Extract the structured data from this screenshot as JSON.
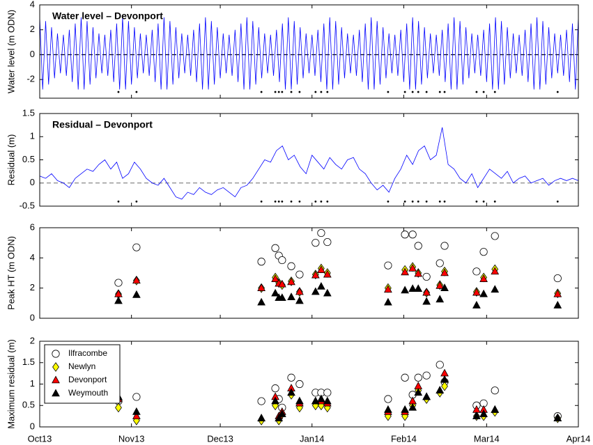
{
  "chart_data": [
    {
      "type": "line",
      "title": "Water level – Devonport",
      "y_label": "Water level (m ODN)",
      "xlim": [
        0,
        182
      ],
      "ylim": [
        -3.5,
        4
      ],
      "yticks": [
        -2,
        0,
        2,
        4
      ],
      "hline": 0,
      "hline_color": "#000000",
      "x": [
        0,
        1,
        2,
        3,
        4,
        5,
        6,
        7,
        8,
        9,
        10,
        11,
        12,
        13,
        14,
        15,
        16,
        17,
        18,
        19,
        20,
        21,
        22,
        23,
        24,
        25,
        26,
        27,
        28,
        29,
        30,
        31,
        32,
        33,
        34,
        35,
        36,
        37,
        38,
        39,
        40,
        41,
        42,
        43,
        44,
        45,
        46,
        47,
        48,
        49,
        50,
        51,
        52,
        53,
        54,
        55,
        56,
        57,
        58,
        59,
        60,
        61,
        62,
        63,
        64,
        65,
        66,
        67,
        68,
        69,
        70,
        71,
        72,
        73,
        74,
        75,
        76,
        77,
        78,
        79,
        80,
        81,
        82,
        83,
        84,
        85,
        86,
        87,
        88,
        89,
        90,
        91,
        92,
        93,
        94,
        95,
        96,
        97,
        98,
        99,
        100,
        101,
        102,
        103,
        104,
        105,
        106,
        107,
        108,
        109,
        110,
        111,
        112,
        113,
        114,
        115,
        116,
        117,
        118,
        119,
        120,
        121,
        122,
        123,
        124,
        125,
        126,
        127,
        128,
        129,
        130,
        131,
        132,
        133,
        134,
        135,
        136,
        137,
        138,
        139,
        140,
        141,
        142,
        143,
        144,
        145,
        146,
        147,
        148,
        149,
        150,
        151,
        152,
        153,
        154,
        155,
        156,
        157,
        158,
        159,
        160,
        161,
        162,
        163,
        164,
        165,
        166,
        167,
        168,
        169,
        170,
        171,
        172,
        173,
        174,
        175,
        176,
        177,
        178,
        179,
        180,
        181,
        182
      ],
      "series": [
        {
          "color": "#0000ff",
          "values": [
            3.0,
            -2.8,
            2.7,
            -2.4,
            2.2,
            -1.9,
            1.7,
            -1.5,
            1.6,
            -1.7,
            2.0,
            -2.2,
            2.5,
            -2.8,
            3.0,
            -2.8,
            2.7,
            -2.4,
            2.2,
            -1.9,
            1.7,
            -1.5,
            1.6,
            -1.7,
            2.0,
            -2.2,
            2.5,
            -2.8,
            3.0,
            -2.8,
            2.7,
            -2.4,
            2.2,
            -1.9,
            1.7,
            -1.5,
            1.6,
            -1.7,
            2.0,
            -2.2,
            2.5,
            -2.8,
            3.0,
            -2.8,
            2.7,
            -2.4,
            2.2,
            -1.9,
            1.7,
            -1.5,
            1.6,
            -1.7,
            2.0,
            -2.2,
            2.5,
            -2.8,
            3.0,
            -2.8,
            2.7,
            -2.4,
            2.2,
            -1.9,
            1.7,
            -1.5,
            1.6,
            -1.7,
            2.0,
            -2.2,
            2.5,
            -2.8,
            3.0,
            -2.8,
            2.7,
            -2.4,
            2.2,
            -1.9,
            1.7,
            -1.5,
            1.6,
            -1.7,
            2.0,
            -2.2,
            2.5,
            -2.8,
            3.0,
            -2.8,
            2.7,
            -2.4,
            2.2,
            -1.9,
            1.7,
            -1.5,
            1.6,
            -1.7,
            2.0,
            -2.2,
            2.5,
            -2.8,
            3.0,
            -2.8,
            2.7,
            -2.4,
            2.2,
            -1.9,
            1.7,
            -1.5,
            1.6,
            -1.7,
            2.0,
            -2.2,
            2.5,
            -2.8,
            3.0,
            -2.8,
            2.7,
            -2.4,
            2.2,
            -1.9,
            1.7,
            -1.5,
            1.6,
            -1.7,
            2.0,
            -2.2,
            2.5,
            -2.8,
            3.0,
            -2.8,
            2.7,
            -2.4,
            2.2,
            -1.9,
            1.7,
            -1.5,
            1.6,
            -1.7,
            2.0,
            -2.2,
            2.5,
            -2.8,
            3.0,
            -2.8,
            2.7,
            -2.4,
            2.2,
            -1.9,
            1.7,
            -1.5,
            1.6,
            -1.7,
            2.0,
            -2.2,
            2.5,
            -2.8,
            3.0,
            -2.8,
            2.7,
            -2.4,
            2.2,
            -1.9,
            1.7,
            -1.5,
            1.6,
            -1.7,
            2.0,
            -2.2,
            2.5,
            -2.8,
            3.0,
            -2.8,
            2.7,
            -2.4,
            2.2,
            -1.9,
            1.7,
            -1.5,
            1.6,
            -1.7,
            2.0,
            -2.2,
            2.5,
            -2.8,
            3.0
          ]
        }
      ],
      "events": {
        "x": [
          26.6,
          32.7,
          74.9,
          79.6,
          80.8,
          81.9,
          85,
          87.8,
          93.2,
          95.1,
          97.2,
          117.7,
          123.4,
          126,
          127.9,
          130.7,
          135.2,
          136.8,
          147.6,
          150,
          153.8,
          175
        ],
        "y": -3.0,
        "color": "#000000"
      }
    },
    {
      "type": "line",
      "title": "Residual – Devonport",
      "y_label": "Residual (m)",
      "xlim": [
        0,
        182
      ],
      "ylim": [
        -0.5,
        1.5
      ],
      "yticks": [
        -0.5,
        0,
        0.5,
        1,
        1.5
      ],
      "hline": 0,
      "hline_color": "#888888",
      "x": [
        0,
        2,
        4,
        6,
        8,
        10,
        12,
        14,
        16,
        18,
        20,
        22,
        24,
        26,
        28,
        30,
        32,
        34,
        36,
        38,
        40,
        42,
        44,
        46,
        48,
        50,
        52,
        54,
        56,
        58,
        60,
        62,
        64,
        66,
        68,
        70,
        72,
        74,
        76,
        78,
        80,
        82,
        84,
        86,
        88,
        90,
        92,
        94,
        96,
        98,
        100,
        102,
        104,
        106,
        108,
        110,
        112,
        114,
        116,
        118,
        120,
        122,
        124,
        126,
        128,
        130,
        132,
        134,
        136,
        138,
        140,
        142,
        144,
        146,
        148,
        150,
        152,
        154,
        156,
        158,
        160,
        162,
        164,
        166,
        168,
        170,
        172,
        174,
        176,
        178,
        180,
        182
      ],
      "series": [
        {
          "color": "#0000ff",
          "values": [
            0.15,
            0.1,
            0.2,
            0.05,
            0.0,
            -0.1,
            0.1,
            0.2,
            0.3,
            0.25,
            0.4,
            0.5,
            0.3,
            0.45,
            0.1,
            0.2,
            0.45,
            0.3,
            0.1,
            0.0,
            -0.05,
            0.1,
            -0.1,
            -0.3,
            -0.35,
            -0.2,
            -0.25,
            -0.1,
            -0.2,
            -0.25,
            -0.15,
            -0.1,
            -0.2,
            -0.3,
            -0.1,
            -0.05,
            0.1,
            0.3,
            0.5,
            0.45,
            0.7,
            0.8,
            0.5,
            0.6,
            0.35,
            0.2,
            0.6,
            0.45,
            0.3,
            0.55,
            0.4,
            0.3,
            0.5,
            0.55,
            0.3,
            0.2,
            0.0,
            -0.15,
            -0.05,
            -0.2,
            0.1,
            0.3,
            0.6,
            0.4,
            0.7,
            0.8,
            0.5,
            0.6,
            1.2,
            0.4,
            0.3,
            0.1,
            0.0,
            0.2,
            -0.1,
            0.1,
            0.3,
            0.2,
            0.1,
            0.25,
            0.0,
            0.1,
            0.15,
            0.0,
            0.05,
            0.1,
            -0.05,
            0.05,
            0.1,
            0.05,
            0.1,
            0.05
          ]
        }
      ],
      "events": {
        "x": [
          26.6,
          32.7,
          74.9,
          79.6,
          80.8,
          81.9,
          85,
          87.8,
          93.2,
          95.1,
          97.2,
          117.7,
          123.4,
          126,
          127.9,
          130.7,
          135.2,
          136.8,
          147.6,
          150,
          153.8,
          175
        ],
        "y": -0.4,
        "color": "#000000"
      }
    },
    {
      "type": "scatter",
      "y_label": "Peak HT (m ODN)",
      "xlim": [
        0,
        182
      ],
      "ylim": [
        0,
        6
      ],
      "yticks": [
        0,
        2,
        4,
        6
      ],
      "x": [
        26.6,
        32.7,
        74.9,
        79.6,
        80.8,
        81.9,
        85,
        87.8,
        93.2,
        95.1,
        97.2,
        117.7,
        123.4,
        126,
        127.9,
        130.7,
        135.2,
        136.8,
        147.6,
        150,
        153.8,
        175
      ],
      "series": [
        {
          "marker": "circle",
          "color": "#ffffff",
          "values": [
            2.35,
            4.7,
            3.75,
            4.65,
            4.15,
            3.85,
            3.45,
            2.9,
            5.0,
            5.65,
            5.05,
            3.5,
            5.55,
            5.55,
            4.8,
            2.75,
            3.65,
            4.8,
            3.1,
            4.4,
            5.45,
            2.65
          ]
        },
        {
          "marker": "diamond",
          "color": "#ffff00",
          "values": [
            1.6,
            2.5,
            2.0,
            2.7,
            2.35,
            2.2,
            2.45,
            1.75,
            2.9,
            3.3,
            3.0,
            2.0,
            3.2,
            3.4,
            3.0,
            1.7,
            2.2,
            3.1,
            1.75,
            2.7,
            3.25,
            1.65
          ]
        },
        {
          "marker": "triangle",
          "color": "#ff0000",
          "values": [
            1.6,
            2.5,
            2.0,
            2.6,
            2.3,
            2.25,
            2.4,
            1.75,
            2.85,
            3.2,
            2.9,
            1.9,
            3.05,
            3.3,
            2.95,
            1.7,
            2.15,
            3.0,
            1.7,
            2.6,
            3.1,
            1.6
          ]
        },
        {
          "marker": "triangle",
          "color": "#000000",
          "values": [
            1.15,
            1.55,
            1.05,
            1.65,
            1.35,
            1.35,
            1.4,
            1.15,
            1.75,
            2.1,
            1.65,
            1.05,
            1.85,
            1.95,
            1.95,
            1.1,
            1.25,
            2.0,
            0.85,
            1.6,
            1.9,
            0.85
          ]
        }
      ]
    },
    {
      "type": "scatter",
      "y_label": "Maximum residual (m)",
      "legend": "upper left",
      "xlim": [
        0,
        182
      ],
      "ylim": [
        0,
        2
      ],
      "yticks": [
        0,
        0.5,
        1,
        1.5,
        2
      ],
      "xticks": [
        {
          "value": 0,
          "label": "Oct13"
        },
        {
          "value": 31,
          "label": "Nov13"
        },
        {
          "value": 61,
          "label": "Dec13"
        },
        {
          "value": 92,
          "label": "Jan14"
        },
        {
          "value": 123,
          "label": "Feb14"
        },
        {
          "value": 151,
          "label": "Mar14"
        },
        {
          "value": 182,
          "label": "Apr14"
        }
      ],
      "x": [
        26.6,
        32.7,
        74.9,
        79.6,
        80.8,
        81.9,
        85,
        87.8,
        93.2,
        95.1,
        97.2,
        117.7,
        123.4,
        126,
        127.9,
        130.7,
        135.2,
        136.8,
        147.6,
        150,
        153.8,
        175
      ],
      "series": [
        {
          "name": "Ilfracombe",
          "marker": "circle",
          "color": "#ffffff",
          "values": [
            0.6,
            0.7,
            0.6,
            0.9,
            0.65,
            0.45,
            1.15,
            1.0,
            0.8,
            0.8,
            0.8,
            0.65,
            1.15,
            0.75,
            1.15,
            1.2,
            1.45,
            1.05,
            0.5,
            0.55,
            0.85,
            0.25
          ]
        },
        {
          "name": "Newlyn",
          "marker": "diamond",
          "color": "#ffff00",
          "values": [
            0.45,
            0.15,
            0.15,
            0.5,
            0.15,
            0.3,
            0.75,
            0.45,
            0.5,
            0.5,
            0.45,
            0.25,
            0.25,
            0.5,
            0.85,
            0.65,
            0.8,
            0.95,
            0.25,
            0.25,
            0.35,
            0.2
          ]
        },
        {
          "name": "Devonport",
          "marker": "triangle",
          "color": "#ff0000",
          "values": [
            0.65,
            0.25,
            0.2,
            0.7,
            0.25,
            0.35,
            0.9,
            0.55,
            0.6,
            0.6,
            0.55,
            0.35,
            0.35,
            0.6,
            0.95,
            0.7,
            0.85,
            1.25,
            0.4,
            0.4,
            0.4,
            0.2
          ]
        },
        {
          "name": "Weymouth",
          "marker": "triangle",
          "color": "#000000",
          "values": [
            0.7,
            0.35,
            0.2,
            0.6,
            0.2,
            0.3,
            0.8,
            0.6,
            0.6,
            0.65,
            0.6,
            0.4,
            0.4,
            0.45,
            0.8,
            0.7,
            0.85,
            1.1,
            0.25,
            0.3,
            0.4,
            0.2
          ]
        }
      ]
    }
  ]
}
